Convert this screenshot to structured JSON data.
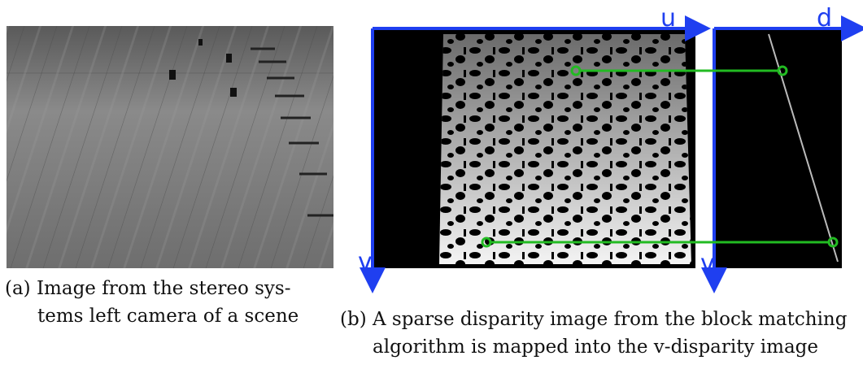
{
  "figure": {
    "subfigure_a": {
      "caption_lines": [
        "(a) Image from the stereo sys-",
        "tems left camera of a scene"
      ]
    },
    "subfigure_b": {
      "axis_labels": {
        "u": "u",
        "d": "d",
        "v_left": "v",
        "v_right": "v"
      },
      "caption_lines": [
        "(b) A sparse disparity image from the block matching",
        "algorithm is mapped into the v-disparity image"
      ]
    }
  }
}
